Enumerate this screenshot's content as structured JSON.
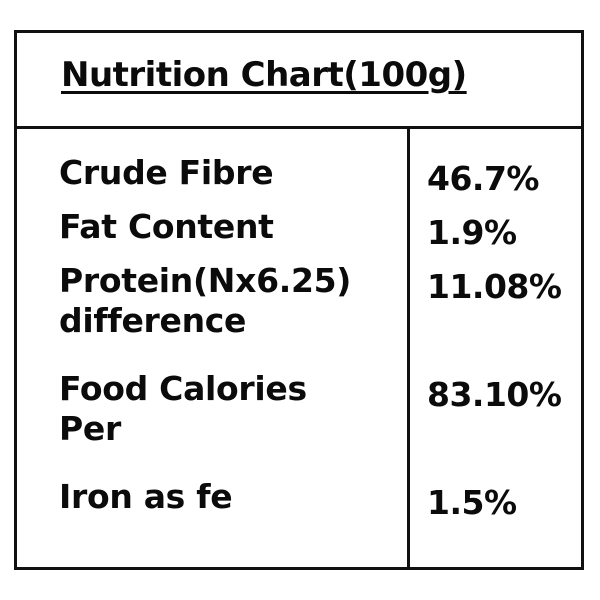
{
  "title": "Nutrition Chart(100g)",
  "rows": [
    {
      "name": "Crude Fibre",
      "value": "46.7%"
    },
    {
      "name": "Fat Content",
      "value": "1.9%"
    },
    {
      "name": "Protein(Nx6.25)",
      "name_line2": "difference",
      "value": "11.08%"
    },
    {
      "name": "Food Calories",
      "name_line2": "Per",
      "value": "83.10%"
    },
    {
      "name": "Iron as fe",
      "value": "1.5%"
    }
  ]
}
